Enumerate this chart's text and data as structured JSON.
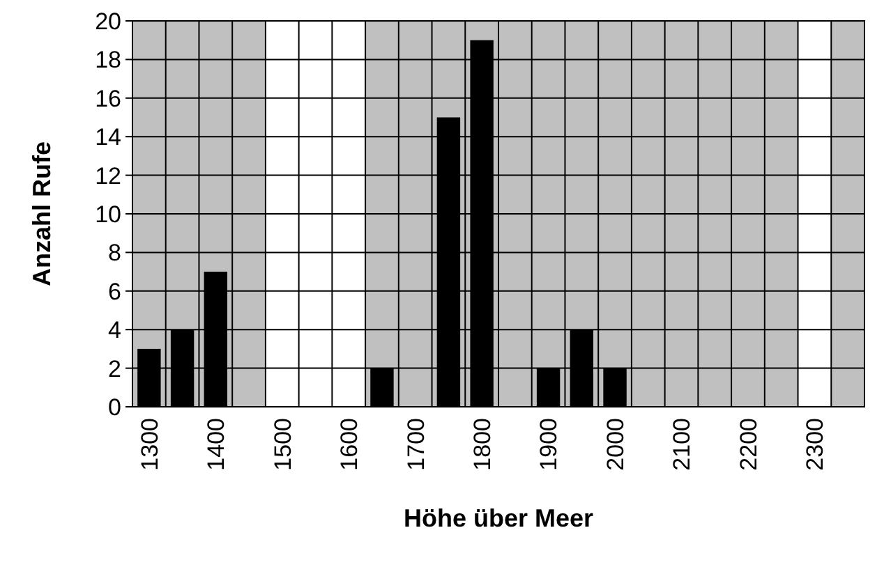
{
  "chart_data": {
    "type": "bar",
    "xlabel": "Höhe über Meer",
    "ylabel": "Anzahl Rufe",
    "categories": [
      "1300",
      null,
      "1400",
      null,
      "1500",
      null,
      "1600",
      null,
      "1700",
      null,
      "1800",
      null,
      "1900",
      null,
      "2000",
      null,
      "2100",
      null,
      "2200",
      null,
      "2300",
      null
    ],
    "values": [
      3,
      4,
      7,
      0,
      0,
      0,
      0,
      2,
      0,
      15,
      19,
      0,
      2,
      4,
      2,
      0,
      0,
      0,
      0,
      0,
      0,
      0
    ],
    "color": "#000000",
    "ylim": [
      0,
      20
    ],
    "yticks": [
      0,
      2,
      4,
      6,
      8,
      10,
      12,
      14,
      16,
      18,
      20
    ],
    "grid": true,
    "bands": [
      {
        "axis": "x",
        "from": "1500",
        "to": "1600",
        "color": "#ffffff"
      },
      {
        "axis": "x",
        "from": "2300",
        "to": "2300",
        "color": "#ffffff"
      }
    ]
  }
}
